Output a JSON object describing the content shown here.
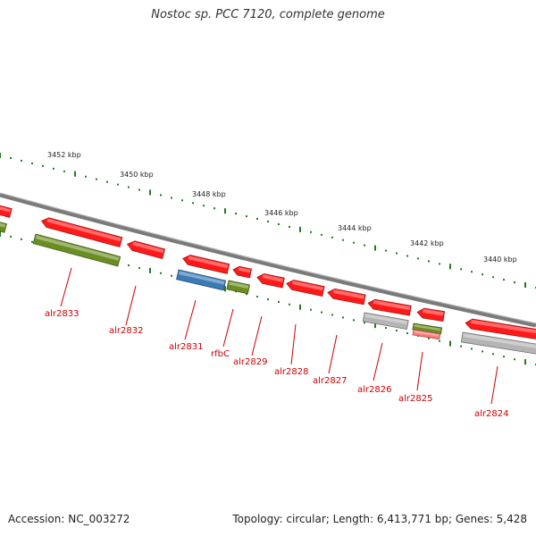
{
  "title": "Nostoc sp. PCC 7120, complete genome",
  "footer": {
    "accession": "Accession: NC_003272",
    "summary": "Topology: circular; Length: 6,413,771 bp; Genes: 5,428"
  },
  "colors": {
    "backbone": "#7a7a7a",
    "gene_red": "#ff1a1a",
    "gene_green": "#6b8e23",
    "gene_blue": "#3a7ab5",
    "gene_gray": "#b4b4b4",
    "gene_pink": "#ff7a7a",
    "tick_green": "#1e7d1e",
    "label_red": "#cc0000"
  },
  "scale_labels": [
    "3452 kbp",
    "3450 kbp",
    "3448 kbp",
    "3446 kbp",
    "3444 kbp",
    "3442 kbp",
    "3440 kbp"
  ],
  "genes": [
    {
      "name": "alr2833",
      "label": "alr2833"
    },
    {
      "name": "alr2832",
      "label": "alr2832"
    },
    {
      "name": "alr2831",
      "label": "alr2831"
    },
    {
      "name": "rfbC",
      "label": "rfbC"
    },
    {
      "name": "alr2829",
      "label": "alr2829"
    },
    {
      "name": "alr2828",
      "label": "alr2828"
    },
    {
      "name": "alr2827",
      "label": "alr2827"
    },
    {
      "name": "alr2826",
      "label": "alr2826"
    },
    {
      "name": "alr2825",
      "label": "alr2825"
    },
    {
      "name": "alr2824",
      "label": "alr2824"
    }
  ]
}
